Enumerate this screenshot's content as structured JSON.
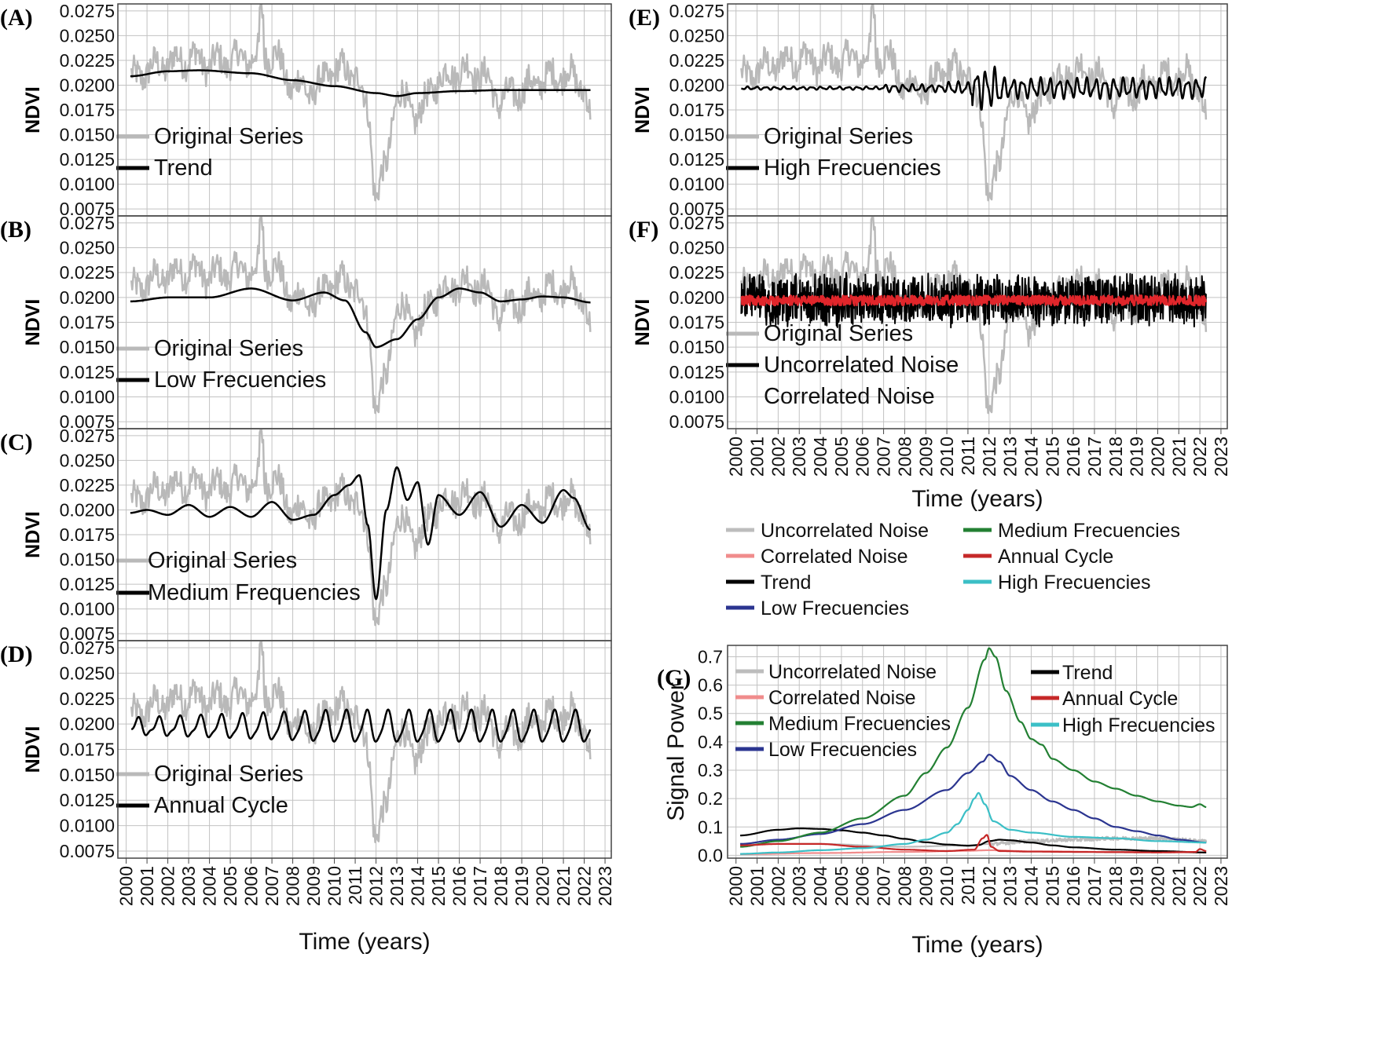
{
  "figure": {
    "panels": [
      {
        "id": "A",
        "label": "(A)",
        "ylabel": "NDVI",
        "legend": [
          {
            "text": "Original Series",
            "color": "#b9b9b9"
          },
          {
            "text": "Trend",
            "color": "#000000"
          }
        ]
      },
      {
        "id": "B",
        "label": "(B)",
        "ylabel": "NDVI",
        "legend": [
          {
            "text": "Original Series",
            "color": "#b9b9b9"
          },
          {
            "text": "Low Frecuencies",
            "color": "#000000"
          }
        ]
      },
      {
        "id": "C",
        "label": "(C)",
        "ylabel": "NDVI",
        "legend": [
          {
            "text": "Original Series",
            "color": "#b9b9b9"
          },
          {
            "text": "Medium Frequencies",
            "color": "#000000"
          }
        ]
      },
      {
        "id": "D",
        "label": "(D)",
        "ylabel": "NDVI",
        "legend": [
          {
            "text": "Original Series",
            "color": "#b9b9b9"
          },
          {
            "text": "Annual Cycle",
            "color": "#000000"
          }
        ]
      },
      {
        "id": "E",
        "label": "(E)",
        "ylabel": "NDVI",
        "legend": [
          {
            "text": "Original Series",
            "color": "#b9b9b9"
          },
          {
            "text": "High Frecuencies",
            "color": "#000000"
          }
        ]
      },
      {
        "id": "F",
        "label": "(F)",
        "ylabel": "NDVI",
        "legend": [
          {
            "text": "Original Series",
            "color": "#b9b9b9"
          },
          {
            "text": "Uncorrelated Noise",
            "color": "#000000"
          },
          {
            "text": "Correlated Noise",
            "color": ""
          }
        ]
      },
      {
        "id": "G",
        "label": "(G)",
        "ylabel": "Signal Power"
      }
    ],
    "xlabel": "Time (years)",
    "ndvi_ticks": [
      "0.0275",
      "0.0250",
      "0.0225",
      "0.0200",
      "0.0175",
      "0.0150",
      "0.0125",
      "0.0100",
      "0.0075"
    ],
    "year_ticks": [
      "2000",
      "2001",
      "2002",
      "2003",
      "2004",
      "2005",
      "2006",
      "2007",
      "2008",
      "2009",
      "2010",
      "2011",
      "2012",
      "2013",
      "2014",
      "2015",
      "2016",
      "2017",
      "2018",
      "2019",
      "2020",
      "2021",
      "2022",
      "2023"
    ],
    "power_ticks": [
      "0.7",
      "0.6",
      "0.5",
      "0.4",
      "0.3",
      "0.2",
      "0.1",
      "0.0"
    ],
    "shared_legend": [
      {
        "text": "Uncorrelated Noise",
        "color": "#bdbdbd"
      },
      {
        "text": "Correlated Noise",
        "color": "#f08c8c"
      },
      {
        "text": "Trend",
        "color": "#000000"
      },
      {
        "text": "Low Frecuencies",
        "color": "#2b3590"
      },
      {
        "text": "Medium Frecuencies",
        "color": "#238033"
      },
      {
        "text": "Annual Cycle",
        "color": "#c62828"
      },
      {
        "text": "High Frecuencies",
        "color": "#3bbfc6"
      }
    ],
    "g_legend": [
      {
        "text": "Uncorrelated Noise",
        "color": "#bdbdbd"
      },
      {
        "text": "Correlated Noise",
        "color": "#f08c8c"
      },
      {
        "text": "Medium Frecuencies",
        "color": "#238033"
      },
      {
        "text": "Low Frecuencies",
        "color": "#2b3590"
      },
      {
        "text": "Trend",
        "color": "#000000"
      },
      {
        "text": "Annual Cycle",
        "color": "#c62828"
      },
      {
        "text": "High Frecuencies",
        "color": "#3bbfc6"
      }
    ]
  },
  "chart_data": [
    {
      "type": "line",
      "panel": "A",
      "ylabel": "NDVI",
      "xlabel": "Time (years)",
      "xlim": [
        1999.6,
        2023.3
      ],
      "ylim": [
        0.0068,
        0.0282
      ],
      "series": [
        {
          "name": "Original Series",
          "color": "#b9b9b9"
        },
        {
          "name": "Trend",
          "color": "#000000",
          "x": [
            2000.2,
            2002,
            2003.5,
            2006,
            2008,
            2010,
            2012,
            2013,
            2014,
            2016,
            2018,
            2020,
            2022.3
          ],
          "y": [
            0.0209,
            0.0214,
            0.0215,
            0.0212,
            0.0205,
            0.0199,
            0.0192,
            0.0189,
            0.0192,
            0.0194,
            0.0195,
            0.0195,
            0.0195
          ]
        }
      ]
    },
    {
      "type": "line",
      "panel": "B",
      "ylabel": "NDVI",
      "xlabel": "Time (years)",
      "xlim": [
        1999.6,
        2023.3
      ],
      "ylim": [
        0.0068,
        0.0282
      ],
      "series": [
        {
          "name": "Original Series",
          "color": "#b9b9b9"
        },
        {
          "name": "Low Frecuencies",
          "color": "#000000",
          "x": [
            2000.2,
            2002,
            2004,
            2006,
            2008,
            2009.5,
            2010.5,
            2011.5,
            2012,
            2013,
            2014,
            2015,
            2016,
            2017,
            2018,
            2019,
            2020,
            2021,
            2022.3
          ],
          "y": [
            0.0196,
            0.02,
            0.02,
            0.0209,
            0.0197,
            0.0205,
            0.0197,
            0.0165,
            0.015,
            0.0158,
            0.0178,
            0.02,
            0.0209,
            0.0205,
            0.0196,
            0.0198,
            0.0201,
            0.02,
            0.0195
          ]
        }
      ]
    },
    {
      "type": "line",
      "panel": "C",
      "ylabel": "NDVI",
      "xlabel": "Time (years)",
      "xlim": [
        1999.6,
        2023.3
      ],
      "ylim": [
        0.0068,
        0.0282
      ],
      "series": [
        {
          "name": "Original Series",
          "color": "#b9b9b9"
        },
        {
          "name": "Medium Frequencies",
          "color": "#000000",
          "x": [
            2000.2,
            2001,
            2002,
            2003,
            2004,
            2005,
            2006,
            2007,
            2008,
            2009,
            2010,
            2010.7,
            2011.2,
            2011.6,
            2012,
            2012.5,
            2013,
            2013.5,
            2014,
            2014.5,
            2015,
            2016,
            2017,
            2018,
            2019,
            2020,
            2021,
            2021.5,
            2022.3
          ],
          "y": [
            0.0197,
            0.02,
            0.0195,
            0.0205,
            0.0193,
            0.0203,
            0.0193,
            0.0208,
            0.019,
            0.0195,
            0.0215,
            0.0225,
            0.0235,
            0.0185,
            0.011,
            0.02,
            0.0243,
            0.021,
            0.0228,
            0.0165,
            0.0215,
            0.0195,
            0.0218,
            0.0183,
            0.0205,
            0.0187,
            0.022,
            0.0212,
            0.018
          ]
        }
      ]
    },
    {
      "type": "line",
      "panel": "D",
      "ylabel": "NDVI",
      "xlabel": "Time (years)",
      "xlim": [
        1999.6,
        2023.3
      ],
      "ylim": [
        0.0068,
        0.0282
      ],
      "series": [
        {
          "name": "Original Series",
          "color": "#b9b9b9"
        },
        {
          "name": "Annual Cycle",
          "color": "#000000",
          "note": "sinusoid, period 1 year, mean 0.0197, amplitude ~0.0008 (2000) to ~0.0015 (2012-2021)"
        }
      ]
    },
    {
      "type": "line",
      "panel": "E",
      "ylabel": "NDVI",
      "xlabel": "Time (years)",
      "xlim": [
        1999.6,
        2023.3
      ],
      "ylim": [
        0.0068,
        0.0282
      ],
      "series": [
        {
          "name": "Original Series",
          "color": "#b9b9b9"
        },
        {
          "name": "High Frecuencies",
          "color": "#000000",
          "note": "~0.0197 baseline, small oscillations, burst near 2011.5 (0.0228 max, 0.0173 min)"
        }
      ]
    },
    {
      "type": "line",
      "panel": "F",
      "ylabel": "NDVI",
      "xlabel": "Time (years)",
      "xlim": [
        1999.6,
        2023.3
      ],
      "ylim": [
        0.0068,
        0.0282
      ],
      "series": [
        {
          "name": "Original Series",
          "color": "#b9b9b9"
        },
        {
          "name": "Uncorrelated Noise",
          "color": "#000000",
          "note": "noise around 0.0197, range ~0.0175-0.0225"
        },
        {
          "name": "Correlated Noise",
          "color": "#e0262b",
          "note": "noise around 0.0197, range ~0.0190-0.0205"
        }
      ]
    },
    {
      "type": "line",
      "panel": "G",
      "ylabel": "Signal Power",
      "xlabel": "Time (years)",
      "xlim": [
        1999.6,
        2023.3
      ],
      "ylim": [
        -0.01,
        0.74
      ],
      "series": [
        {
          "name": "Uncorrelated Noise",
          "color": "#bdbdbd",
          "x": [
            2000.2,
            2004,
            2008,
            2011,
            2012,
            2014,
            2016,
            2018,
            2020,
            2022.3
          ],
          "y": [
            0.04,
            0.04,
            0.03,
            0.035,
            0.04,
            0.05,
            0.055,
            0.06,
            0.06,
            0.05
          ]
        },
        {
          "name": "Correlated Noise",
          "color": "#f08c8c",
          "x": [
            2000.2,
            2004,
            2008,
            2011,
            2012,
            2014,
            2018,
            2022.3
          ],
          "y": [
            0.004,
            0.008,
            0.012,
            0.016,
            0.018,
            0.014,
            0.012,
            0.01
          ]
        },
        {
          "name": "Trend",
          "color": "#000000",
          "x": [
            2000.2,
            2002,
            2003,
            2004,
            2005,
            2006,
            2007,
            2008,
            2009,
            2010,
            2011,
            2011.5,
            2012,
            2012.5,
            2013,
            2014,
            2015,
            2016,
            2018,
            2020,
            2022.3
          ],
          "y": [
            0.07,
            0.09,
            0.095,
            0.093,
            0.088,
            0.08,
            0.07,
            0.058,
            0.046,
            0.038,
            0.034,
            0.036,
            0.05,
            0.055,
            0.053,
            0.045,
            0.035,
            0.028,
            0.02,
            0.015,
            0.01
          ]
        },
        {
          "name": "Low Frecuencies",
          "color": "#2b3590",
          "x": [
            2000.2,
            2002,
            2004,
            2006,
            2008,
            2010,
            2011,
            2011.7,
            2012,
            2012.5,
            2013,
            2014,
            2015,
            2016,
            2017,
            2018,
            2019,
            2020,
            2021,
            2022.3
          ],
          "y": [
            0.04,
            0.055,
            0.075,
            0.11,
            0.16,
            0.23,
            0.29,
            0.33,
            0.355,
            0.33,
            0.28,
            0.23,
            0.19,
            0.16,
            0.13,
            0.1,
            0.085,
            0.07,
            0.055,
            0.045
          ]
        },
        {
          "name": "Medium Frecuencies",
          "color": "#238033",
          "x": [
            2000.2,
            2002,
            2004,
            2006,
            2008,
            2009,
            2010,
            2011,
            2011.8,
            2012,
            2012.3,
            2012.8,
            2013.5,
            2014,
            2014.5,
            2015,
            2016,
            2017,
            2018,
            2019,
            2020,
            2021,
            2021.6,
            2022,
            2022.3
          ],
          "y": [
            0.03,
            0.05,
            0.08,
            0.13,
            0.21,
            0.29,
            0.38,
            0.52,
            0.69,
            0.73,
            0.7,
            0.58,
            0.47,
            0.41,
            0.39,
            0.34,
            0.3,
            0.26,
            0.235,
            0.21,
            0.19,
            0.175,
            0.17,
            0.18,
            0.17
          ]
        },
        {
          "name": "Annual Cycle",
          "color": "#c62828",
          "x": [
            2000.2,
            2002,
            2004,
            2006,
            2008,
            2010,
            2011.3,
            2011.7,
            2011.9,
            2012.1,
            2012.5,
            2014,
            2016,
            2018,
            2020,
            2021.8,
            2022,
            2022.3
          ],
          "y": [
            0.035,
            0.04,
            0.04,
            0.03,
            0.02,
            0.015,
            0.02,
            0.06,
            0.072,
            0.03,
            0.015,
            0.013,
            0.012,
            0.011,
            0.01,
            0.012,
            0.022,
            0.015
          ]
        },
        {
          "name": "High Frecuencies",
          "color": "#3bbfc6",
          "x": [
            2000.2,
            2002,
            2004,
            2006,
            2008,
            2009,
            2010,
            2010.5,
            2011,
            2011.3,
            2011.5,
            2011.8,
            2012.2,
            2013,
            2014,
            2016,
            2018,
            2020,
            2022.3
          ],
          "y": [
            0.005,
            0.01,
            0.018,
            0.025,
            0.04,
            0.055,
            0.08,
            0.11,
            0.16,
            0.2,
            0.22,
            0.18,
            0.12,
            0.09,
            0.08,
            0.065,
            0.06,
            0.05,
            0.045
          ]
        }
      ]
    }
  ]
}
